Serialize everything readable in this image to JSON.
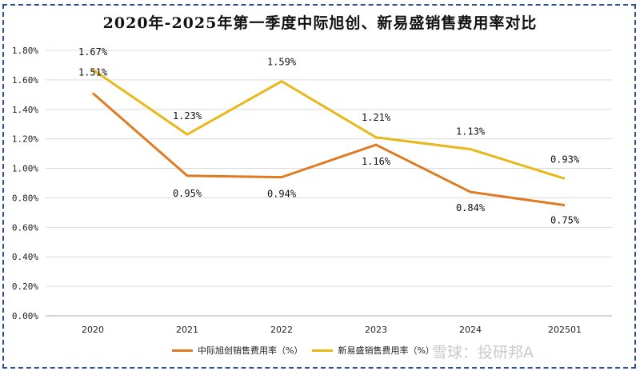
{
  "title": "2020年-2025年第一季度中际旭创、新易盛销售费用率对比",
  "legend": [
    {
      "label": "中际旭创销售费用率（%）",
      "color": "#e07b24"
    },
    {
      "label": "新易盛销售费用率（%）",
      "color": "#e8b81a"
    }
  ],
  "watermark": "雪球：投研邦A",
  "chart_data": {
    "type": "line",
    "title": "2020年-2025年第一季度中际旭创、新易盛销售费用率对比",
    "xlabel": "",
    "ylabel": "",
    "categories": [
      "2020",
      "2021",
      "2022",
      "2023",
      "2024",
      "202501"
    ],
    "series": [
      {
        "name": "中际旭创销售费用率（%）",
        "color": "#e07b24",
        "values": [
          1.51,
          0.95,
          0.94,
          1.16,
          0.84,
          0.75
        ]
      },
      {
        "name": "新易盛销售费用率（%）",
        "color": "#e8b81a",
        "values": [
          1.67,
          1.23,
          1.59,
          1.21,
          1.13,
          0.93
        ]
      }
    ],
    "data_labels": {
      "中际旭创": [
        "1.51%",
        "0.95%",
        "0.94%",
        "1.16%",
        "0.84%",
        "0.75%"
      ],
      "新易盛": [
        "1.67%",
        "1.23%",
        "1.59%",
        "1.21%",
        "1.13%",
        "0.93%"
      ]
    },
    "yticks": [
      "0.00%",
      "0.20%",
      "0.40%",
      "0.60%",
      "0.80%",
      "1.00%",
      "1.20%",
      "1.40%",
      "1.60%",
      "1.80%"
    ],
    "ylim": [
      0,
      1.8
    ],
    "grid": true,
    "legend_position": "bottom"
  }
}
